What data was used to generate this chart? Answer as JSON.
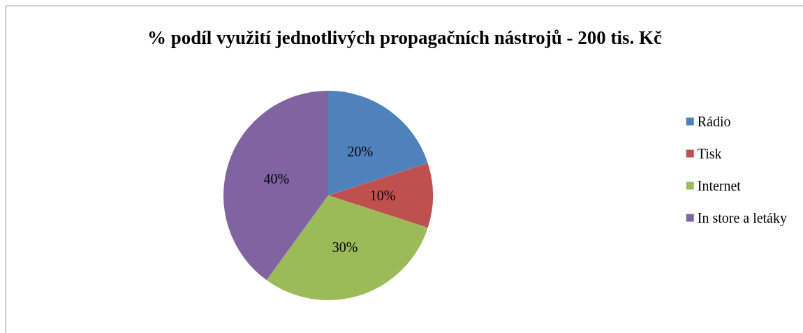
{
  "chart_data": {
    "type": "pie",
    "title": "% podíl využití jednotlivých propagačních nástrojů - 200 tis. Kč",
    "categories": [
      "Rádio",
      "Tisk",
      "Internet",
      "In store a letáky"
    ],
    "values": [
      20,
      10,
      30,
      40
    ],
    "colors": [
      "#4f81bd",
      "#c0504d",
      "#9bbb59",
      "#8064a2"
    ],
    "value_labels": [
      "20%",
      "10%",
      "30%",
      "40%"
    ],
    "legend": "right"
  }
}
